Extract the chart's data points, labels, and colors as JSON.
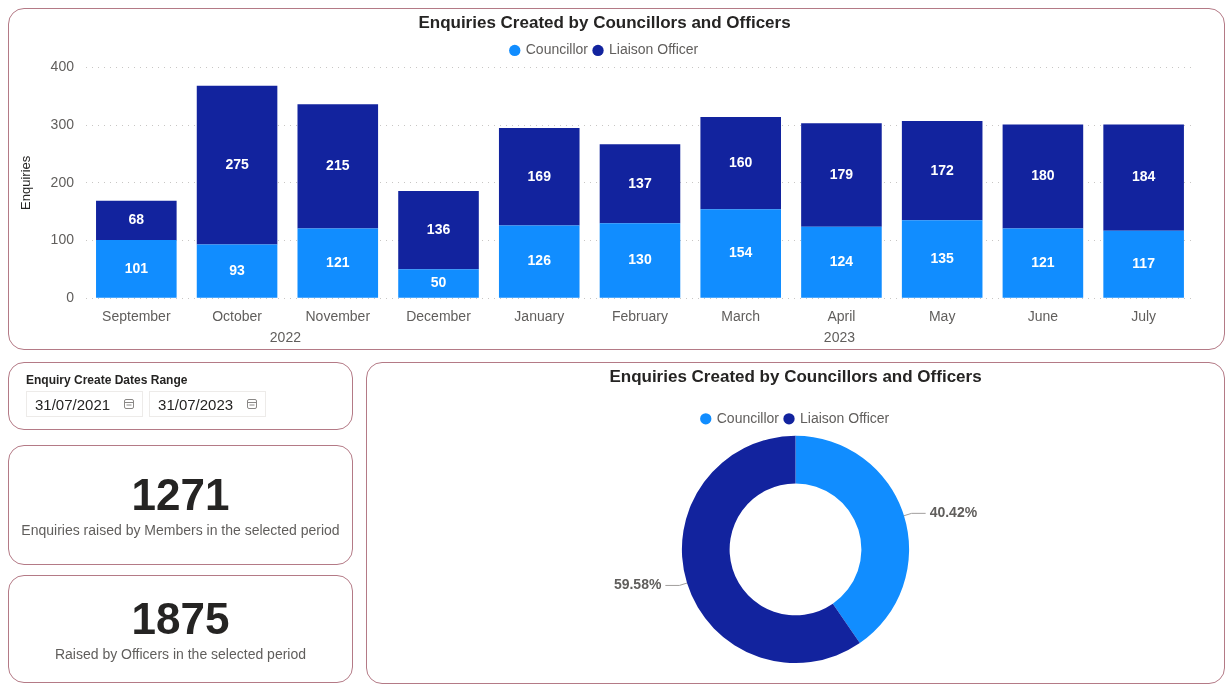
{
  "chart_data": [
    {
      "type": "bar",
      "title": "Enquiries Created by Councillors and Officers",
      "ylabel": "Enquiries",
      "categories": [
        "September",
        "October",
        "November",
        "December",
        "January",
        "February",
        "March",
        "April",
        "May",
        "June",
        "July"
      ],
      "series": [
        {
          "name": "Councillor",
          "color": "#118dff",
          "values": [
            101,
            93,
            121,
            50,
            126,
            130,
            154,
            124,
            135,
            121,
            117
          ]
        },
        {
          "name": "Liaison Officer",
          "color": "#12239e",
          "values": [
            68,
            275,
            215,
            136,
            169,
            137,
            160,
            179,
            172,
            180,
            184
          ]
        }
      ],
      "stacked": true,
      "ylim": [
        0,
        400
      ],
      "yticks": [
        0,
        100,
        200,
        300,
        400
      ],
      "grid": "y",
      "legend": "top",
      "data_labels": true,
      "annotations": [
        "2022",
        "2023"
      ]
    },
    {
      "type": "other",
      "title": "Enquiry Create Dates Range",
      "annotations": [
        "31/07/2021",
        "31/07/2023"
      ]
    },
    {
      "type": "other",
      "annotations": [
        "1271",
        "Enquiries raised by Members in the selected period"
      ]
    },
    {
      "type": "other",
      "annotations": [
        "1875",
        "Raised by Officers in the selected period"
      ]
    },
    {
      "type": "donut",
      "title": "Enquiries Created by Councillors and Officers",
      "categories": [
        "Councillor",
        "Liaison Officer"
      ],
      "values": [
        40.42,
        59.58
      ],
      "colors": [
        "#118dff",
        "#12239e"
      ],
      "legend": "top",
      "value_labels": [
        "40.42%",
        "59.58%"
      ]
    }
  ]
}
